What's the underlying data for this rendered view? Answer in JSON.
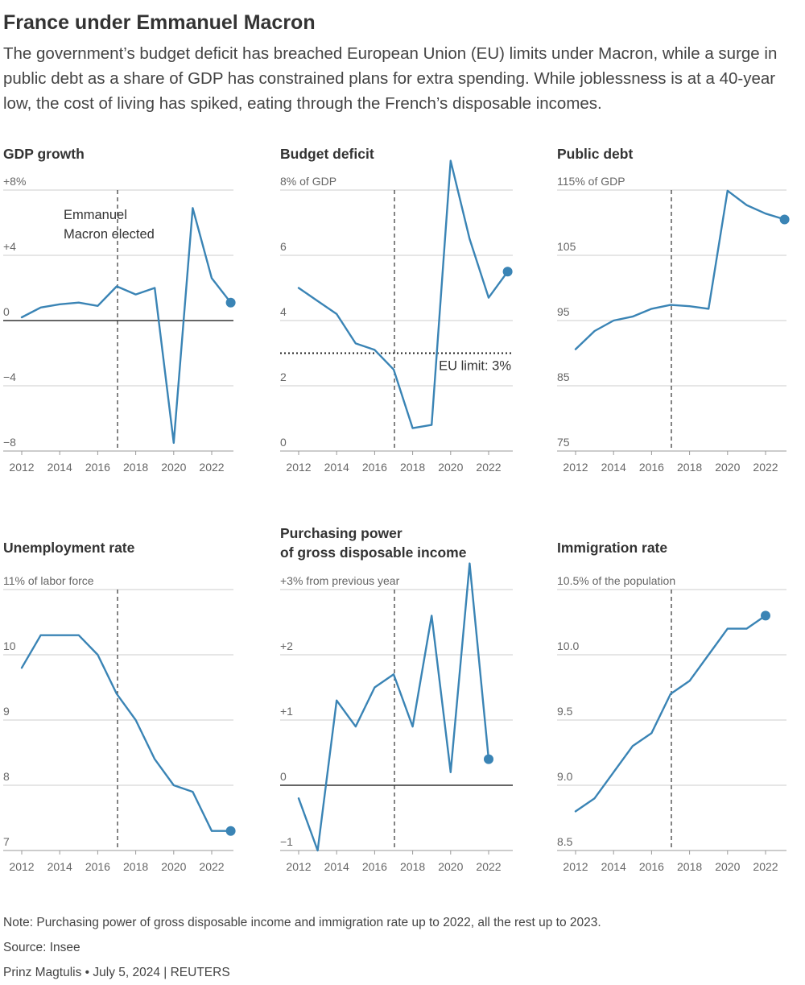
{
  "header": {
    "title": "France under Emmanuel Macron",
    "subtitle": "The government’s budget deficit has breached European Union (EU) limits under Macron, while a surge in public debt as a share of GDP has constrained plans for extra spending. While joblessness is at a 40-year low, the cost of living has spiked, eating through the French’s disposable incomes."
  },
  "footer": {
    "note": "Note: Purchasing power of gross disposable income and immigration rate up to 2022, all the rest up to 2023.",
    "source": "Source: Insee",
    "byline": "Prinz Magtulis  • July 5, 2024 | REUTERS"
  },
  "colors": {
    "line": "#3a84b5",
    "grid": "#cccccc",
    "zero": "#333333",
    "text": "#333333"
  },
  "chart_data": [
    {
      "type": "line",
      "title": "GDP growth",
      "unit_label": "+8%",
      "x": [
        2012,
        2013,
        2014,
        2015,
        2016,
        2017,
        2018,
        2019,
        2020,
        2021,
        2022,
        2023
      ],
      "series": [
        {
          "values": [
            0.2,
            0.8,
            1.0,
            1.1,
            0.9,
            2.1,
            1.6,
            2.0,
            -7.5,
            6.9,
            2.6,
            1.1
          ]
        }
      ],
      "ylim": [
        -8,
        8
      ],
      "yticks": [
        8,
        4,
        0,
        -4,
        -8
      ],
      "ytick_labels": [
        "+8%",
        "+4",
        "0",
        "−4",
        "−8"
      ],
      "xticks": [
        2012,
        2014,
        2016,
        2018,
        2020,
        2022
      ],
      "xtick_labels": [
        "2012",
        "2014",
        "2016",
        "2018",
        "2020",
        "2022"
      ],
      "zero_line": 0,
      "event_year": 2017,
      "annotations": [
        "Emmanuel",
        "Macron elected"
      ]
    },
    {
      "type": "line",
      "title": "Budget deficit",
      "unit_label": "8% of GDP",
      "x": [
        2012,
        2013,
        2014,
        2015,
        2016,
        2017,
        2018,
        2019,
        2020,
        2021,
        2022,
        2023
      ],
      "series": [
        {
          "values": [
            5.0,
            4.6,
            4.2,
            3.3,
            3.1,
            2.5,
            0.7,
            0.8,
            8.9,
            6.5,
            4.7,
            5.5
          ]
        }
      ],
      "ylim": [
        0,
        8
      ],
      "yticks": [
        8,
        6,
        4,
        2,
        0
      ],
      "ytick_labels": [
        "8% of GDP",
        "6",
        "4",
        "2",
        "0"
      ],
      "xticks": [
        2012,
        2014,
        2016,
        2018,
        2020,
        2022
      ],
      "xtick_labels": [
        "2012",
        "2014",
        "2016",
        "2018",
        "2020",
        "2022"
      ],
      "reference_line": 3,
      "reference_label": "EU limit: 3%",
      "event_year": 2017
    },
    {
      "type": "line",
      "title": "Public debt",
      "unit_label": "115% of GDP",
      "x": [
        2012,
        2013,
        2014,
        2015,
        2016,
        2017,
        2018,
        2019,
        2020,
        2021,
        2022,
        2023
      ],
      "series": [
        {
          "values": [
            90.6,
            93.4,
            95.0,
            95.6,
            96.8,
            97.4,
            97.2,
            96.8,
            114.9,
            112.7,
            111.4,
            110.5
          ]
        }
      ],
      "ylim": [
        75,
        115
      ],
      "yticks": [
        115,
        105,
        95,
        85,
        75
      ],
      "ytick_labels": [
        "115% of GDP",
        "105",
        "95",
        "85",
        "75"
      ],
      "xticks": [
        2012,
        2014,
        2016,
        2018,
        2020,
        2022
      ],
      "xtick_labels": [
        "2012",
        "2014",
        "2016",
        "2018",
        "2020",
        "2022"
      ],
      "event_year": 2017
    },
    {
      "type": "line",
      "title": "Unemployment rate",
      "unit_label": "11% of labor force",
      "x": [
        2012,
        2013,
        2014,
        2015,
        2016,
        2017,
        2018,
        2019,
        2020,
        2021,
        2022,
        2023
      ],
      "series": [
        {
          "values": [
            9.8,
            10.3,
            10.3,
            10.3,
            10.0,
            9.4,
            9.0,
            8.4,
            8.0,
            7.9,
            7.3,
            7.3
          ]
        }
      ],
      "ylim": [
        7,
        11
      ],
      "yticks": [
        11,
        10,
        9,
        8,
        7
      ],
      "ytick_labels": [
        "11% of labor force",
        "10",
        "9",
        "8",
        "7"
      ],
      "xticks": [
        2012,
        2014,
        2016,
        2018,
        2020,
        2022
      ],
      "xtick_labels": [
        "2012",
        "2014",
        "2016",
        "2018",
        "2020",
        "2022"
      ],
      "event_year": 2017
    },
    {
      "type": "line",
      "title": "Purchasing power of gross disposable income",
      "title_lines": [
        "Purchasing power",
        "of gross disposable income"
      ],
      "unit_label": "+3% from previous year",
      "x": [
        2012,
        2013,
        2014,
        2015,
        2016,
        2017,
        2018,
        2019,
        2020,
        2021,
        2022
      ],
      "series": [
        {
          "values": [
            -0.2,
            -1.0,
            1.3,
            0.9,
            1.5,
            1.7,
            0.9,
            2.6,
            0.2,
            3.4,
            0.4
          ]
        }
      ],
      "ylim": [
        -1,
        3
      ],
      "yticks": [
        3,
        2,
        1,
        0,
        -1
      ],
      "ytick_labels": [
        "+3% from previous year",
        "+2",
        "+1",
        "0",
        "−1"
      ],
      "xticks": [
        2012,
        2014,
        2016,
        2018,
        2020,
        2022
      ],
      "xtick_labels": [
        "2012",
        "2014",
        "2016",
        "2018",
        "2020",
        "2022"
      ],
      "zero_line": 0,
      "event_year": 2017
    },
    {
      "type": "line",
      "title": "Immigration rate",
      "unit_label": "10.5% of the population",
      "x": [
        2012,
        2013,
        2014,
        2015,
        2016,
        2017,
        2018,
        2019,
        2020,
        2021,
        2022
      ],
      "series": [
        {
          "values": [
            8.8,
            8.9,
            9.1,
            9.3,
            9.4,
            9.7,
            9.8,
            10.0,
            10.2,
            10.2,
            10.3
          ]
        }
      ],
      "ylim": [
        8.5,
        10.5
      ],
      "yticks": [
        10.5,
        10.0,
        9.5,
        9.0,
        8.5
      ],
      "ytick_labels": [
        "10.5% of the population",
        "10.0",
        "9.5",
        "9.0",
        "8.5"
      ],
      "xticks": [
        2012,
        2014,
        2016,
        2018,
        2020,
        2022
      ],
      "xtick_labels": [
        "2012",
        "2014",
        "2016",
        "2018",
        "2020",
        "2022"
      ],
      "event_year": 2017
    }
  ]
}
